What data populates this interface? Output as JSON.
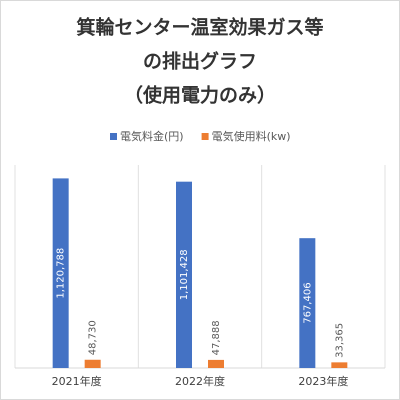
{
  "chart_data": {
    "type": "bar",
    "title": [
      "箕輪センター温室効果ガス等",
      "の排出グラフ",
      "（使用電力のみ）"
    ],
    "categories": [
      "2021年度",
      "2022年度",
      "2023年度"
    ],
    "series": [
      {
        "name": "電気料金(円)",
        "color": "#4472c4",
        "values": [
          1120788,
          1101428,
          767406
        ],
        "value_labels": [
          "1,120,788",
          "1,101,428",
          "767,406"
        ]
      },
      {
        "name": "電気使用料(kw)",
        "color": "#ed7d31",
        "values": [
          48730,
          47888,
          33365
        ],
        "value_labels": [
          "48,730",
          "47,888",
          "33,365"
        ]
      }
    ],
    "ylim": [
      0,
      1200000
    ],
    "grid": true
  }
}
